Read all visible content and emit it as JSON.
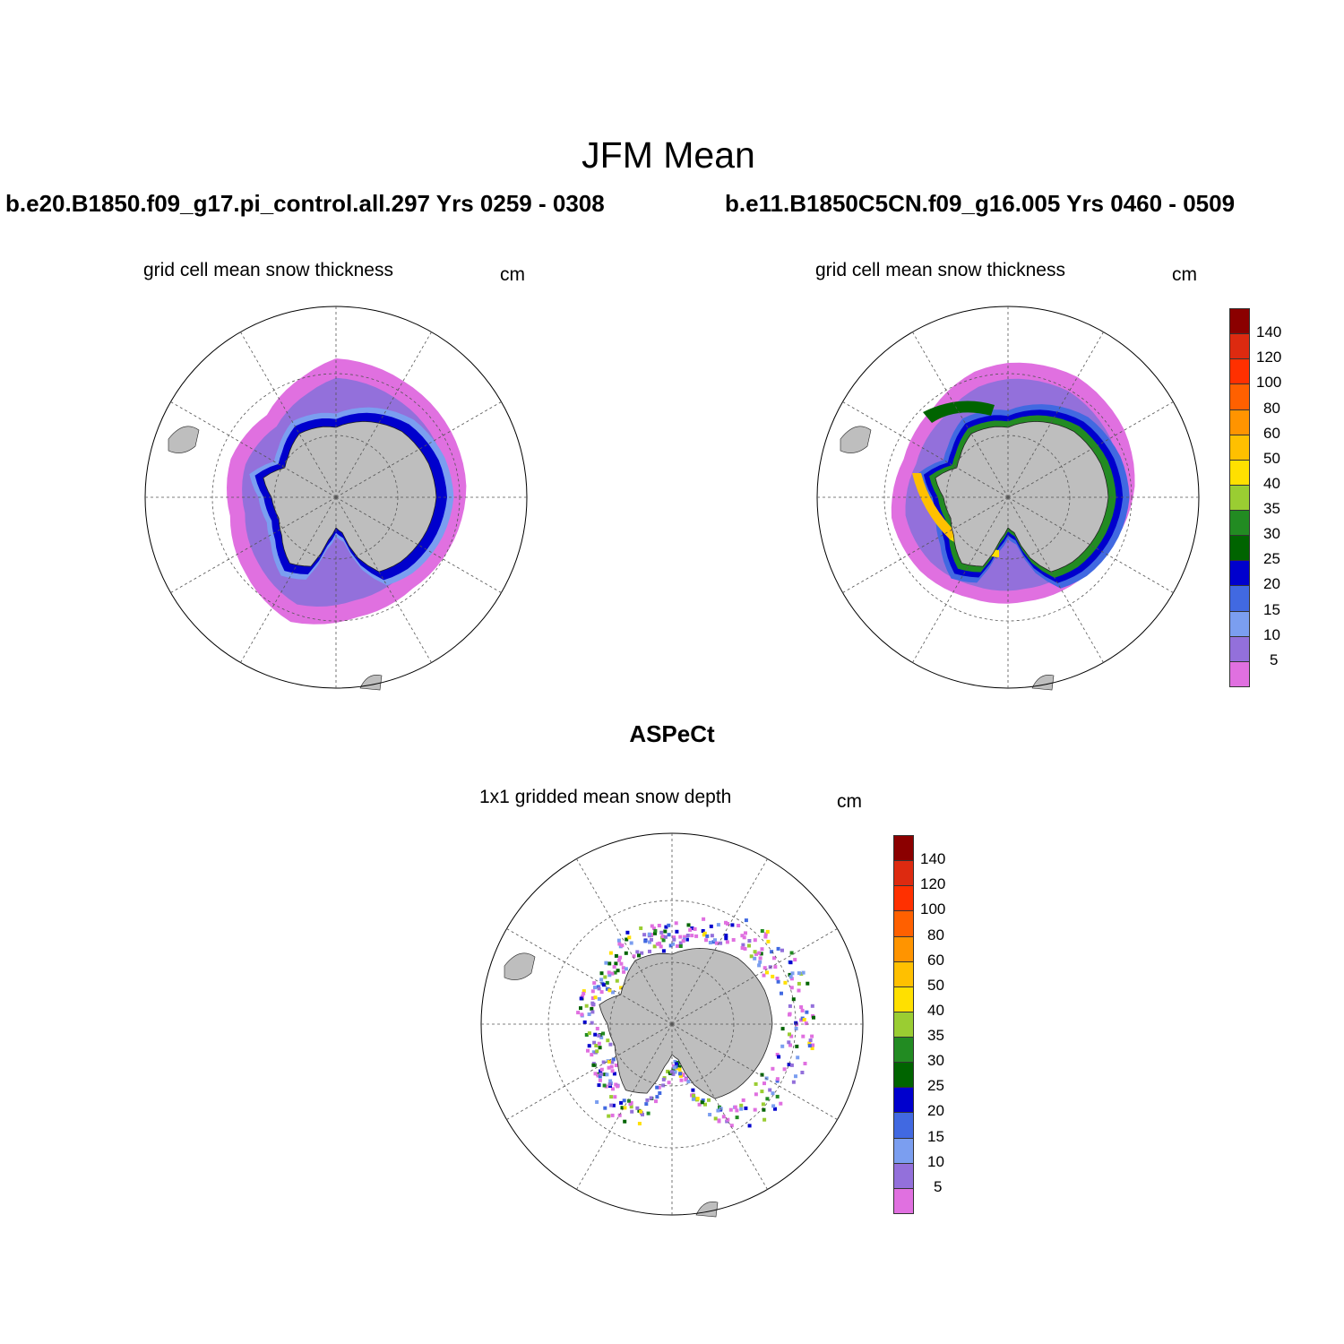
{
  "figure": {
    "title": "JFM Mean",
    "panels": [
      {
        "run_title": "b.e20.B1850.f09_g17.pi_control.all.297  Yrs 0259 - 0308",
        "variable_title": "grid cell mean snow thickness",
        "units": "cm",
        "colorbar": false
      },
      {
        "run_title": "b.e11.B1850C5CN.f09_g16.005  Yrs 0460 - 0509",
        "variable_title": "grid cell mean snow thickness",
        "units": "cm",
        "colorbar": true
      },
      {
        "run_title": "ASPeCt",
        "variable_title": "1x1 gridded mean snow depth",
        "units": "cm",
        "colorbar": true
      }
    ],
    "colorbar": {
      "levels": [
        "5",
        "10",
        "15",
        "20",
        "25",
        "30",
        "35",
        "40",
        "50",
        "60",
        "80",
        "100",
        "120",
        "140"
      ],
      "colors": [
        "#e070e0",
        "#9370db",
        "#7b9ef0",
        "#4169e1",
        "#0000cd",
        "#006400",
        "#228b22",
        "#9acd32",
        "#ffe000",
        "#ffc000",
        "#ff9400",
        "#ff6000",
        "#ff3000",
        "#dd2a10",
        "#8b0000"
      ]
    },
    "map_colors": {
      "land": "#bebebe",
      "grid": "#555555"
    }
  }
}
